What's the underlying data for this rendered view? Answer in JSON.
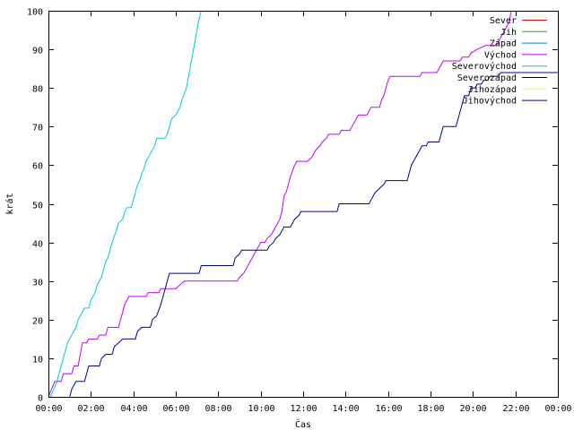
{
  "chart_data": {
    "type": "line",
    "title": "",
    "xlabel": "Čas",
    "ylabel": "krát",
    "x_unit": "hours",
    "xlim": [
      0,
      24
    ],
    "ylim": [
      0,
      100
    ],
    "x_ticks": [
      {
        "value": 0,
        "label": "00:00"
      },
      {
        "value": 2,
        "label": "02:00"
      },
      {
        "value": 4,
        "label": "04:00"
      },
      {
        "value": 6,
        "label": "06:00"
      },
      {
        "value": 8,
        "label": "08:00"
      },
      {
        "value": 10,
        "label": "10:00"
      },
      {
        "value": 12,
        "label": "12:00"
      },
      {
        "value": 14,
        "label": "14:00"
      },
      {
        "value": 16,
        "label": "16:00"
      },
      {
        "value": 18,
        "label": "18:00"
      },
      {
        "value": 20,
        "label": "20:00"
      },
      {
        "value": 22,
        "label": "22:00"
      },
      {
        "value": 24,
        "label": "00:00"
      }
    ],
    "y_ticks": [
      0,
      10,
      20,
      30,
      40,
      50,
      60,
      70,
      80,
      90,
      100
    ],
    "grid": false,
    "legend_position": "top-right",
    "series": [
      {
        "name": "Sever",
        "color": "#ff0000",
        "points": []
      },
      {
        "name": "Jih",
        "color": "#00c000",
        "points": []
      },
      {
        "name": "Západ",
        "color": "#0080ff",
        "points": []
      },
      {
        "name": "Východ",
        "color": "#c000ff",
        "points": [
          [
            0.0,
            0
          ],
          [
            0.15,
            2
          ],
          [
            0.3,
            4
          ],
          [
            0.6,
            4
          ],
          [
            0.7,
            6
          ],
          [
            1.1,
            6
          ],
          [
            1.2,
            8
          ],
          [
            1.4,
            8
          ],
          [
            1.5,
            11
          ],
          [
            1.6,
            14
          ],
          [
            1.8,
            14
          ],
          [
            1.9,
            15
          ],
          [
            2.3,
            15
          ],
          [
            2.4,
            16
          ],
          [
            2.7,
            16
          ],
          [
            2.8,
            18
          ],
          [
            3.3,
            18
          ],
          [
            3.4,
            20
          ],
          [
            3.5,
            22
          ],
          [
            3.6,
            24
          ],
          [
            3.8,
            26
          ],
          [
            4.6,
            26
          ],
          [
            4.7,
            27
          ],
          [
            5.2,
            27
          ],
          [
            5.3,
            28
          ],
          [
            6.0,
            28
          ],
          [
            6.2,
            29
          ],
          [
            6.4,
            30
          ],
          [
            8.9,
            30
          ],
          [
            9.0,
            31
          ],
          [
            9.2,
            32
          ],
          [
            9.4,
            34
          ],
          [
            9.6,
            36
          ],
          [
            9.8,
            38
          ],
          [
            10.0,
            40
          ],
          [
            10.2,
            40
          ],
          [
            10.3,
            41
          ],
          [
            10.5,
            42
          ],
          [
            10.7,
            44
          ],
          [
            10.9,
            46
          ],
          [
            11.0,
            48
          ],
          [
            11.1,
            52
          ],
          [
            11.2,
            53
          ],
          [
            11.4,
            57
          ],
          [
            11.6,
            60
          ],
          [
            11.7,
            61
          ],
          [
            12.2,
            61
          ],
          [
            12.4,
            62
          ],
          [
            12.6,
            64
          ],
          [
            12.8,
            65
          ],
          [
            12.9,
            66
          ],
          [
            13.1,
            67
          ],
          [
            13.2,
            68
          ],
          [
            13.7,
            68
          ],
          [
            13.8,
            69
          ],
          [
            14.2,
            69
          ],
          [
            14.3,
            70
          ],
          [
            14.4,
            71
          ],
          [
            14.5,
            72
          ],
          [
            14.6,
            73
          ],
          [
            15.0,
            73
          ],
          [
            15.1,
            74
          ],
          [
            15.2,
            75
          ],
          [
            15.6,
            75
          ],
          [
            15.7,
            77
          ],
          [
            15.8,
            78
          ],
          [
            15.9,
            80
          ],
          [
            16.0,
            82
          ],
          [
            16.1,
            83
          ],
          [
            17.5,
            83
          ],
          [
            17.6,
            84
          ],
          [
            18.3,
            84
          ],
          [
            18.4,
            85
          ],
          [
            18.6,
            87
          ],
          [
            19.4,
            87
          ],
          [
            19.5,
            88
          ],
          [
            19.8,
            88
          ],
          [
            19.9,
            89
          ],
          [
            20.2,
            90
          ],
          [
            20.6,
            91
          ],
          [
            21.1,
            91
          ],
          [
            21.3,
            93
          ],
          [
            21.5,
            95
          ],
          [
            21.7,
            97
          ],
          [
            21.8,
            100
          ]
        ]
      },
      {
        "name": "Severovýchod",
        "color": "#00c8e0",
        "points": [
          [
            0.1,
            0
          ],
          [
            0.25,
            2
          ],
          [
            0.4,
            4
          ],
          [
            0.5,
            6
          ],
          [
            0.6,
            8
          ],
          [
            0.7,
            10
          ],
          [
            0.8,
            12
          ],
          [
            0.9,
            14
          ],
          [
            1.0,
            15
          ],
          [
            1.1,
            16
          ],
          [
            1.2,
            17
          ],
          [
            1.3,
            18
          ],
          [
            1.4,
            20
          ],
          [
            1.6,
            22
          ],
          [
            1.7,
            23
          ],
          [
            1.9,
            23
          ],
          [
            2.0,
            25
          ],
          [
            2.1,
            26
          ],
          [
            2.2,
            27
          ],
          [
            2.3,
            29
          ],
          [
            2.5,
            31
          ],
          [
            2.6,
            33
          ],
          [
            2.7,
            35
          ],
          [
            2.8,
            36
          ],
          [
            2.9,
            38
          ],
          [
            3.0,
            40
          ],
          [
            3.2,
            43
          ],
          [
            3.3,
            45
          ],
          [
            3.5,
            46
          ],
          [
            3.6,
            48
          ],
          [
            3.7,
            49
          ],
          [
            3.9,
            49
          ],
          [
            4.0,
            51
          ],
          [
            4.1,
            53
          ],
          [
            4.2,
            55
          ],
          [
            4.3,
            56
          ],
          [
            4.4,
            58
          ],
          [
            4.5,
            59
          ],
          [
            4.6,
            61
          ],
          [
            4.7,
            62
          ],
          [
            4.8,
            63
          ],
          [
            4.9,
            64
          ],
          [
            5.0,
            65
          ],
          [
            5.1,
            67
          ],
          [
            5.5,
            67
          ],
          [
            5.6,
            68
          ],
          [
            5.7,
            70
          ],
          [
            5.8,
            72
          ],
          [
            6.0,
            73
          ],
          [
            6.2,
            75
          ],
          [
            6.3,
            77
          ],
          [
            6.5,
            80
          ],
          [
            6.6,
            83
          ],
          [
            6.7,
            86
          ],
          [
            6.8,
            89
          ],
          [
            6.9,
            92
          ],
          [
            7.0,
            95
          ],
          [
            7.1,
            98
          ],
          [
            7.2,
            100
          ]
        ]
      },
      {
        "name": "Severozápad",
        "color": "#000000",
        "points": []
      },
      {
        "name": "Jihozápad",
        "color": "#ffff00",
        "points": []
      },
      {
        "name": "Jihovýchod",
        "color": "#00008b",
        "points": [
          [
            1.0,
            0
          ],
          [
            1.1,
            2
          ],
          [
            1.3,
            4
          ],
          [
            1.7,
            4
          ],
          [
            1.8,
            6
          ],
          [
            1.9,
            8
          ],
          [
            2.4,
            8
          ],
          [
            2.5,
            10
          ],
          [
            2.7,
            11
          ],
          [
            3.0,
            11
          ],
          [
            3.1,
            13
          ],
          [
            3.3,
            14
          ],
          [
            3.5,
            15
          ],
          [
            4.1,
            15
          ],
          [
            4.2,
            17
          ],
          [
            4.4,
            18
          ],
          [
            4.8,
            18
          ],
          [
            4.9,
            20
          ],
          [
            5.1,
            21
          ],
          [
            5.3,
            24
          ],
          [
            5.4,
            26
          ],
          [
            5.5,
            28
          ],
          [
            5.6,
            30
          ],
          [
            5.7,
            32
          ],
          [
            7.1,
            32
          ],
          [
            7.2,
            34
          ],
          [
            8.7,
            34
          ],
          [
            8.8,
            36
          ],
          [
            9.0,
            37
          ],
          [
            9.1,
            38
          ],
          [
            10.3,
            38
          ],
          [
            10.4,
            39
          ],
          [
            10.6,
            40
          ],
          [
            10.7,
            41
          ],
          [
            10.9,
            42
          ],
          [
            11.0,
            43
          ],
          [
            11.1,
            44
          ],
          [
            11.4,
            44
          ],
          [
            11.5,
            45
          ],
          [
            11.6,
            46
          ],
          [
            11.8,
            47
          ],
          [
            11.9,
            48
          ],
          [
            13.6,
            48
          ],
          [
            13.7,
            50
          ],
          [
            15.1,
            50
          ],
          [
            15.2,
            51
          ],
          [
            15.4,
            53
          ],
          [
            15.6,
            54
          ],
          [
            15.8,
            55
          ],
          [
            15.9,
            56
          ],
          [
            16.9,
            56
          ],
          [
            17.0,
            58
          ],
          [
            17.1,
            60
          ],
          [
            17.2,
            61
          ],
          [
            17.4,
            63
          ],
          [
            17.5,
            64
          ],
          [
            17.6,
            65
          ],
          [
            17.8,
            65
          ],
          [
            17.9,
            66
          ],
          [
            18.4,
            66
          ],
          [
            18.5,
            68
          ],
          [
            18.6,
            70
          ],
          [
            19.2,
            70
          ],
          [
            19.3,
            72
          ],
          [
            19.4,
            74
          ],
          [
            19.5,
            76
          ],
          [
            19.6,
            78
          ],
          [
            19.8,
            78
          ],
          [
            19.9,
            80
          ],
          [
            20.1,
            80
          ],
          [
            20.2,
            81
          ],
          [
            20.4,
            81
          ],
          [
            20.5,
            82
          ],
          [
            20.7,
            82
          ],
          [
            20.8,
            83
          ],
          [
            21.2,
            83
          ],
          [
            21.3,
            84
          ],
          [
            24.0,
            84
          ]
        ]
      }
    ]
  }
}
